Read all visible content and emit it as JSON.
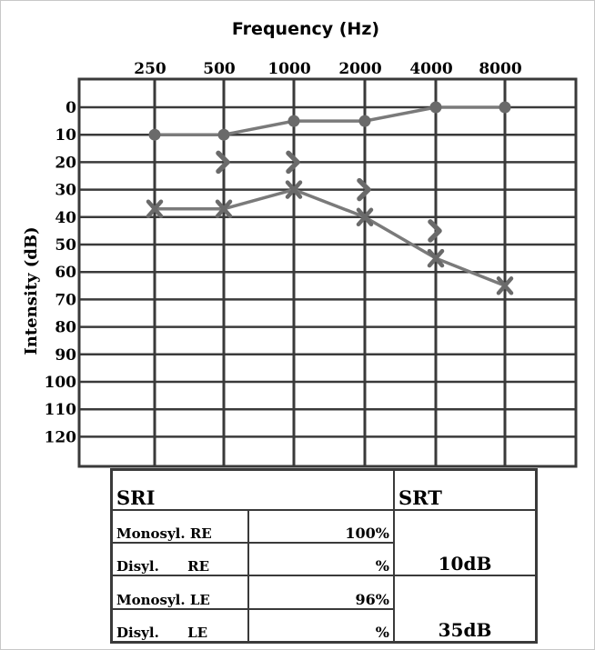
{
  "chart_data": {
    "type": "line",
    "title": "Frequency (Hz)",
    "xlabel": "Frequency (Hz)",
    "ylabel": "Intensity (dB)",
    "categories": [
      "250",
      "500",
      "1000",
      "2000",
      "4000",
      "8000"
    ],
    "y_ticks": [
      "0",
      "10",
      "20",
      "30",
      "40",
      "50",
      "60",
      "70",
      "80",
      "90",
      "100",
      "110",
      "120"
    ],
    "ylim": [
      0,
      130
    ],
    "y_inverted": true,
    "grid": true,
    "series": [
      {
        "marker": "circle",
        "values": [
          10,
          10,
          5,
          5,
          0,
          0
        ],
        "connected": true
      },
      {
        "marker": "x",
        "values": [
          37,
          37,
          30,
          40,
          55,
          65
        ],
        "connected": true
      },
      {
        "marker": "chevron",
        "values": [
          null,
          20,
          20,
          30,
          45,
          null
        ],
        "connected": false
      }
    ],
    "colors": {
      "line": "#7a7a7a",
      "grid": "#3a3a3a",
      "marker": "#6a6a6a"
    }
  },
  "table": {
    "sri_header": "SRI",
    "srt_header": "SRT",
    "rows": [
      {
        "label": "Monosyl. RE",
        "value": "100%"
      },
      {
        "label": "Disyl.      RE",
        "value": "%"
      },
      {
        "label": "Monosyl. LE",
        "value": "96%"
      },
      {
        "label": "Disyl.      LE",
        "value": "%"
      }
    ],
    "srt_values": [
      "10dB",
      "35dB"
    ]
  }
}
